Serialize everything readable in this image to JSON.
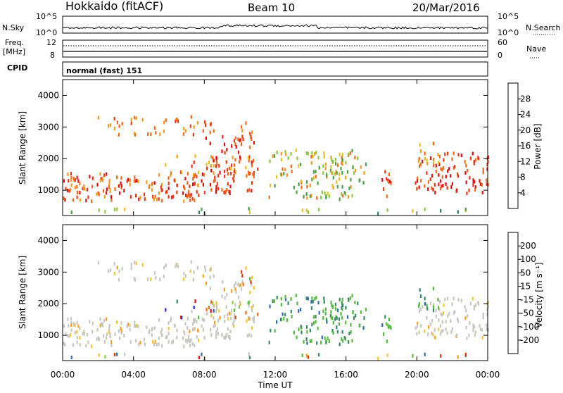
{
  "header": {
    "title": "Hokkaido (fitACF)",
    "beam": "Beam 10",
    "date": "20/Mar/2016"
  },
  "nsky_panel": {
    "label": "N.Sky",
    "ticks_left": [
      "10^5",
      "10^0"
    ],
    "ticks_right": [
      "10^5",
      "10^0"
    ],
    "right_label": "N.Search"
  },
  "freq_panel": {
    "label_line1": "Freq.",
    "label_line2": "[MHz]",
    "ticks_left": [
      "12",
      "8"
    ],
    "ticks_right": [
      "60",
      "0"
    ],
    "right_label": "Nave"
  },
  "cpid_panel": {
    "label": "CPID",
    "mode": "normal (fast) 151"
  },
  "x_axis": {
    "label": "Time UT",
    "ticks": [
      "00:00",
      "04:00",
      "08:00",
      "12:00",
      "16:00",
      "20:00",
      "00:00"
    ]
  },
  "chart_data": [
    {
      "type": "heatmap",
      "name": "power",
      "ylabel": "Slant Range [km]",
      "yticks": [
        "1000",
        "2000",
        "3000",
        "4000"
      ],
      "ylim": [
        200,
        4500
      ],
      "xlim_hours": [
        0,
        24
      ],
      "colorbar": {
        "label": "Power [dB]",
        "ticks": [
          "4",
          "8",
          "12",
          "16",
          "20",
          "24",
          "28"
        ],
        "colors": [
          "#1020e0",
          "#1c55b8",
          "#2f7f5a",
          "#4d9f48",
          "#90c63c",
          "#e8c025",
          "#f59c20",
          "#f46a1c",
          "#ee3a18",
          "#e01010"
        ]
      }
    },
    {
      "type": "heatmap",
      "name": "velocity",
      "ylabel": "Slant Range [km]",
      "yticks": [
        "1000",
        "2000",
        "3000",
        "4000"
      ],
      "ylim": [
        200,
        4500
      ],
      "xlim_hours": [
        0,
        24
      ],
      "colorbar": {
        "label": "Velocity [m s⁻¹]",
        "ticks": [
          "200",
          "100",
          "50",
          "15",
          "-15",
          "-50",
          "-100",
          "-200"
        ],
        "colors": [
          "#2030c8",
          "#306aa8",
          "#3a8860",
          "#58b840",
          "#8cd040",
          "#c8c8c0",
          "#c8c8c0",
          "#f0c838",
          "#f5a020",
          "#f07018",
          "#ea3a14",
          "#e01010"
        ]
      }
    }
  ]
}
